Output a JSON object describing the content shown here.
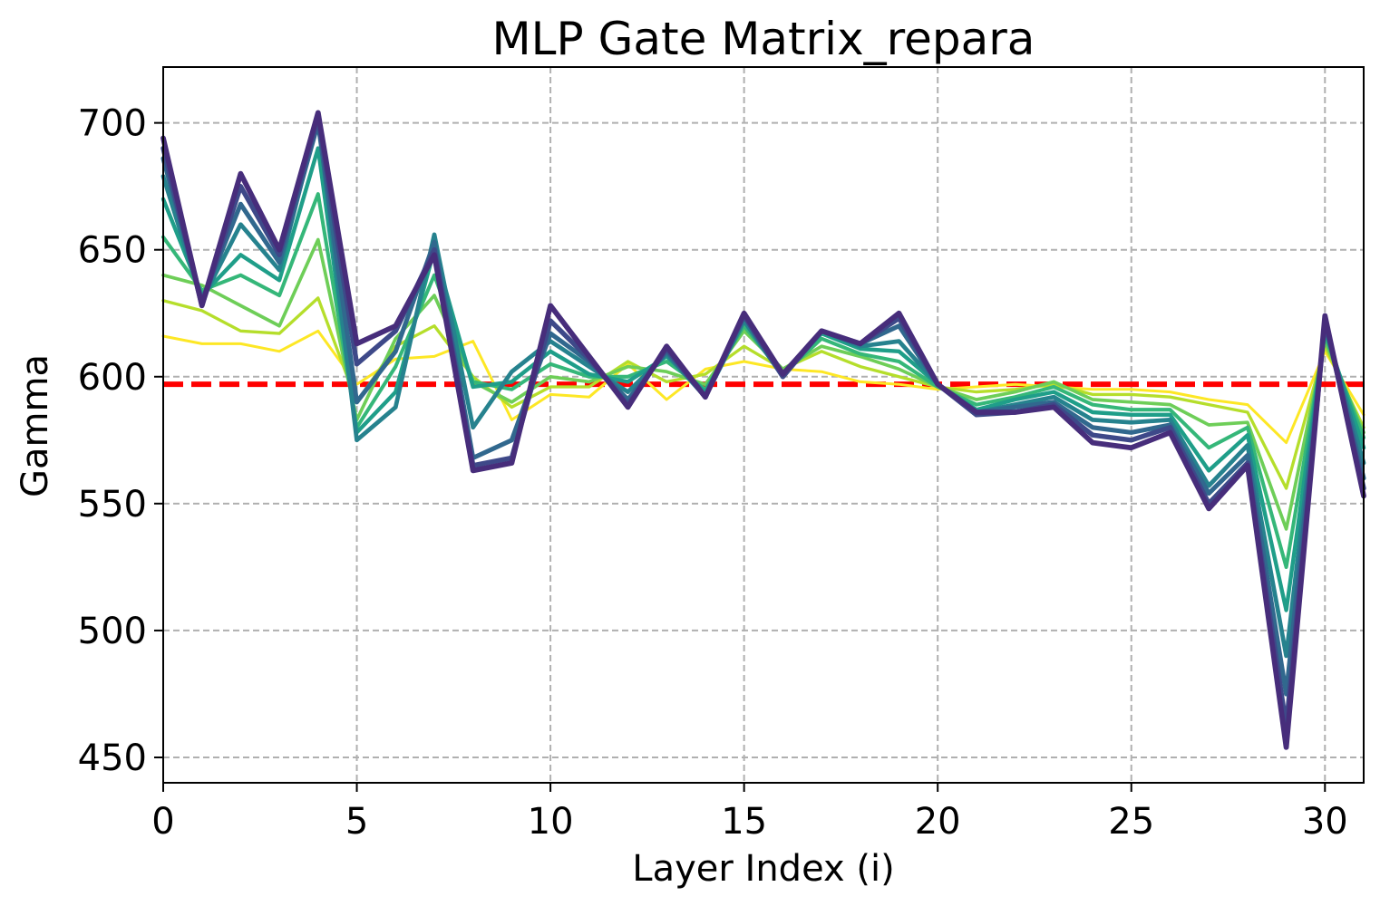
{
  "chart_data": {
    "type": "line",
    "title": "MLP Gate Matrix_repara",
    "xlabel": "Layer Index (i)",
    "ylabel": "Gamma",
    "xlim": [
      0,
      31
    ],
    "ylim": [
      440,
      722
    ],
    "xticks": [
      0,
      5,
      10,
      15,
      20,
      25,
      30
    ],
    "yticks": [
      450,
      500,
      550,
      600,
      650,
      700
    ],
    "grid": true,
    "grid_style": "dashed",
    "colormap": "viridis",
    "reference_line": {
      "y": 597,
      "color": "#ff0000",
      "style": "dashed"
    },
    "x": [
      0,
      1,
      2,
      3,
      4,
      5,
      6,
      7,
      8,
      9,
      10,
      11,
      12,
      13,
      14,
      15,
      16,
      17,
      18,
      19,
      20,
      21,
      22,
      23,
      24,
      25,
      26,
      27,
      28,
      29,
      30,
      31
    ],
    "series": [
      {
        "color": "#fde725",
        "values": [
          616,
          613,
          613,
          610,
          618,
          597,
          607,
          608,
          614,
          583,
          593,
          592,
          605,
          591,
          603,
          606,
          603,
          602,
          598,
          597,
          595,
          596,
          597,
          596,
          595,
          595,
          594,
          591,
          589,
          574,
          610,
          585
        ]
      },
      {
        "color": "#b5de2b",
        "values": [
          630,
          626,
          618,
          617,
          631,
          590,
          612,
          620,
          600,
          588,
          596,
          596,
          606,
          598,
          601,
          612,
          603,
          610,
          604,
          600,
          596,
          594,
          595,
          597,
          593,
          593,
          592,
          589,
          586,
          556,
          612,
          580
        ]
      },
      {
        "color": "#6ece58",
        "values": [
          640,
          636,
          628,
          620,
          654,
          583,
          615,
          632,
          598,
          590,
          600,
          598,
          604,
          602,
          597,
          618,
          603,
          612,
          608,
          603,
          596,
          591,
          594,
          598,
          591,
          590,
          589,
          581,
          582,
          540,
          614,
          578
        ]
      },
      {
        "color": "#35b779",
        "values": [
          655,
          634,
          640,
          632,
          672,
          580,
          604,
          640,
          598,
          595,
          605,
          600,
          600,
          606,
          595,
          620,
          601,
          615,
          609,
          606,
          596,
          589,
          592,
          596,
          589,
          587,
          587,
          572,
          580,
          525,
          616,
          576
        ]
      },
      {
        "color": "#1f9e89",
        "values": [
          670,
          632,
          648,
          638,
          690,
          578,
          594,
          650,
          596,
          598,
          610,
          601,
          598,
          608,
          594,
          622,
          601,
          617,
          611,
          610,
          597,
          587,
          591,
          594,
          586,
          585,
          585,
          563,
          577,
          508,
          618,
          572
        ]
      },
      {
        "color": "#26828e",
        "values": [
          679,
          630,
          660,
          642,
          702,
          575,
          588,
          656,
          580,
          602,
          614,
          604,
          594,
          609,
          592,
          622,
          600,
          618,
          612,
          614,
          597,
          586,
          589,
          592,
          583,
          582,
          583,
          557,
          573,
          490,
          620,
          566
        ]
      },
      {
        "color": "#31688e",
        "values": [
          686,
          630,
          668,
          645,
          700,
          590,
          610,
          653,
          568,
          575,
          617,
          606,
          591,
          610,
          592,
          624,
          600,
          618,
          613,
          620,
          597,
          586,
          588,
          590,
          580,
          578,
          581,
          554,
          569,
          475,
          622,
          560
        ]
      },
      {
        "color": "#3e4989",
        "values": [
          690,
          628,
          675,
          648,
          702,
          605,
          618,
          650,
          565,
          568,
          622,
          607,
          589,
          611,
          592,
          624,
          600,
          618,
          613,
          623,
          597,
          585,
          586,
          589,
          577,
          575,
          580,
          550,
          566,
          462,
          622,
          556
        ]
      },
      {
        "color": "#472d7b",
        "values": [
          694,
          628,
          680,
          650,
          704,
          613,
          620,
          648,
          563,
          566,
          628,
          608,
          588,
          612,
          592,
          625,
          601,
          618,
          613,
          625,
          597,
          586,
          586,
          588,
          574,
          572,
          578,
          548,
          565,
          454,
          624,
          553
        ]
      }
    ]
  }
}
